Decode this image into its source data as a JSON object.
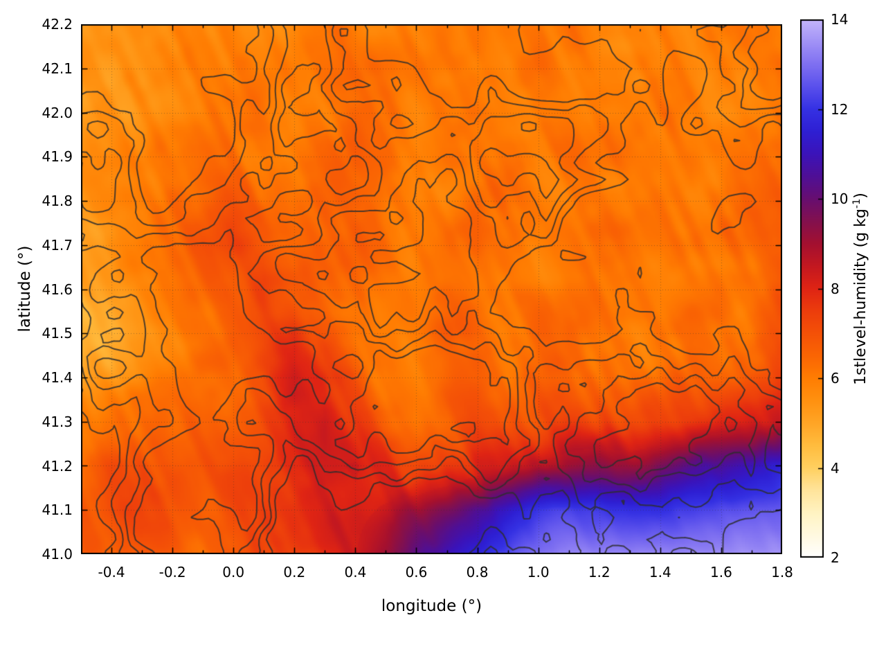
{
  "page": {
    "background": "#ffffff"
  },
  "labels": {
    "xlabel": "longitude (°)",
    "ylabel": "latitude (°)",
    "cb_prefix": "1stlevel-humidity (g kg",
    "cb_sup": "-1",
    "cb_suffix": ")"
  },
  "chart_data": {
    "type": "heatmap",
    "title": "",
    "xlabel": "longitude (°)",
    "ylabel": "latitude (°)",
    "colorbar_label": "1stlevel-humidity (g kg⁻¹)",
    "xlim": [
      -0.5,
      1.8
    ],
    "ylim": [
      41.0,
      42.2
    ],
    "clim": [
      2,
      14
    ],
    "grid_on": true,
    "x_tick_values": [
      -0.4,
      -0.2,
      0.0,
      0.2,
      0.4,
      0.6,
      0.8,
      1.0,
      1.2,
      1.4,
      1.6,
      1.8
    ],
    "x_tick_labels": [
      "-0.4",
      "-0.2",
      "0.0",
      "0.2",
      "0.4",
      "0.6",
      "0.8",
      "1.0",
      "1.2",
      "1.4",
      "1.6",
      "1.8"
    ],
    "y_tick_values": [
      41.0,
      41.1,
      41.2,
      41.3,
      41.4,
      41.5,
      41.6,
      41.7,
      41.8,
      41.9,
      42.0,
      42.1,
      42.2
    ],
    "y_tick_labels": [
      "41.0",
      "41.1",
      "41.2",
      "41.3",
      "41.4",
      "41.5",
      "41.6",
      "41.7",
      "41.8",
      "41.9",
      "42.0",
      "42.1",
      "42.2"
    ],
    "cb_tick_values": [
      2,
      4,
      6,
      8,
      10,
      12,
      14
    ],
    "cb_tick_labels": [
      "2",
      "4",
      "6",
      "8",
      "10",
      "12",
      "14"
    ],
    "palette": [
      [
        2,
        "#ffffff"
      ],
      [
        3,
        "#fff3c2"
      ],
      [
        3.5,
        "#ffe49b"
      ],
      [
        4,
        "#ffd060"
      ],
      [
        4.5,
        "#ffbc3e"
      ],
      [
        5,
        "#ffa526"
      ],
      [
        5.5,
        "#ff9110"
      ],
      [
        6,
        "#ff7d02"
      ],
      [
        6.5,
        "#fa6503"
      ],
      [
        7,
        "#f45107"
      ],
      [
        7.5,
        "#ec3d0c"
      ],
      [
        8,
        "#df2414"
      ],
      [
        8.5,
        "#c31820"
      ],
      [
        9,
        "#a31030"
      ],
      [
        9.5,
        "#83104e"
      ],
      [
        10,
        "#670e70"
      ],
      [
        10.5,
        "#4f0f96"
      ],
      [
        11,
        "#3b13b9"
      ],
      [
        11.5,
        "#2e1fd3"
      ],
      [
        12,
        "#3531e3"
      ],
      [
        12.5,
        "#5a50ec"
      ],
      [
        13,
        "#7f70f1"
      ],
      [
        13.5,
        "#a192f6"
      ],
      [
        14,
        "#c4b5fa"
      ]
    ],
    "contour_overlay": {
      "present": true,
      "color": "#2e2e2e",
      "description": "unlabeled terrain-style isolines"
    },
    "field_grid": {
      "lon_start": -0.5,
      "lon_step": 0.1,
      "lat_start": 42.2,
      "lat_step": -0.1,
      "units": "g/kg",
      "values": [
        [
          5.4,
          5.5,
          5.6,
          5.8,
          6.0,
          6.0,
          5.9,
          5.8,
          6.0,
          6.1,
          6.0,
          6.0,
          6.1,
          6.0,
          5.9,
          5.9,
          6.0,
          6.0,
          5.9,
          5.8,
          5.9,
          6.0,
          6.0,
          6.0
        ],
        [
          5.2,
          5.3,
          5.5,
          5.8,
          6.0,
          6.1,
          6.0,
          5.9,
          6.0,
          6.2,
          6.3,
          6.1,
          6.0,
          6.0,
          5.9,
          6.0,
          6.1,
          6.0,
          5.9,
          5.9,
          6.0,
          6.1,
          6.0,
          6.0
        ],
        [
          5.3,
          5.4,
          5.6,
          5.9,
          6.1,
          6.2,
          6.2,
          6.0,
          6.1,
          6.4,
          6.4,
          6.1,
          6.0,
          6.1,
          6.0,
          6.1,
          6.2,
          6.0,
          5.9,
          6.0,
          6.1,
          6.0,
          5.9,
          6.1
        ],
        [
          5.5,
          5.7,
          5.9,
          6.1,
          6.3,
          6.5,
          6.3,
          6.1,
          6.3,
          6.5,
          6.3,
          6.1,
          6.1,
          6.2,
          6.2,
          6.1,
          6.1,
          6.2,
          6.1,
          6.0,
          6.2,
          6.1,
          6.1,
          6.3
        ],
        [
          5.5,
          5.8,
          6.1,
          6.4,
          6.6,
          6.9,
          6.6,
          6.3,
          6.5,
          6.4,
          6.1,
          6.1,
          6.2,
          6.5,
          6.2,
          6.1,
          6.1,
          6.2,
          6.2,
          6.1,
          6.1,
          6.2,
          6.1,
          6.6
        ],
        [
          5.3,
          5.6,
          6.0,
          6.4,
          6.8,
          7.3,
          6.9,
          6.4,
          6.6,
          6.4,
          6.2,
          6.1,
          6.2,
          6.5,
          6.2,
          6.1,
          6.2,
          6.5,
          6.2,
          6.1,
          6.1,
          6.2,
          6.3,
          7.0
        ],
        [
          4.9,
          5.1,
          5.5,
          6.0,
          6.5,
          7.0,
          7.5,
          6.9,
          6.5,
          6.2,
          6.1,
          6.1,
          6.2,
          6.3,
          6.1,
          6.1,
          6.4,
          6.3,
          6.1,
          6.1,
          6.2,
          6.4,
          6.3,
          6.9
        ],
        [
          4.7,
          4.9,
          5.2,
          5.7,
          6.2,
          6.8,
          7.4,
          7.8,
          7.0,
          6.4,
          6.0,
          6.1,
          6.5,
          6.3,
          6.1,
          6.2,
          6.5,
          6.2,
          6.1,
          6.2,
          6.5,
          6.3,
          6.5,
          7.0
        ],
        [
          5.1,
          5.3,
          5.6,
          6.0,
          6.4,
          6.8,
          7.3,
          8.3,
          8.1,
          6.9,
          6.2,
          6.0,
          6.3,
          6.6,
          6.2,
          6.4,
          6.7,
          6.5,
          6.2,
          6.5,
          6.8,
          6.5,
          6.8,
          7.2
        ],
        [
          6.0,
          6.2,
          6.4,
          6.4,
          6.7,
          7.0,
          7.3,
          7.8,
          8.5,
          7.6,
          6.8,
          6.3,
          6.6,
          7.0,
          6.8,
          7.0,
          7.4,
          7.2,
          7.0,
          7.2,
          7.5,
          7.8,
          8.0,
          8.4
        ],
        [
          6.5,
          6.8,
          7.0,
          6.8,
          6.9,
          7.2,
          7.4,
          7.8,
          8.3,
          8.6,
          7.9,
          7.4,
          7.6,
          7.9,
          8.2,
          8.6,
          9.0,
          9.4,
          9.2,
          9.6,
          10.2,
          10.6,
          11.0,
          11.6
        ],
        [
          6.8,
          7.0,
          7.2,
          7.0,
          6.8,
          7.1,
          7.4,
          7.7,
          8.0,
          8.3,
          8.6,
          9.0,
          9.6,
          10.4,
          11.2,
          12.0,
          12.2,
          12.1,
          12.0,
          12.1,
          12.2,
          12.3,
          12.5,
          12.7
        ],
        [
          6.6,
          6.8,
          7.0,
          6.8,
          6.6,
          6.9,
          7.2,
          7.6,
          8.0,
          8.5,
          9.2,
          10.2,
          11.0,
          11.6,
          12.4,
          13.0,
          13.2,
          13.3,
          13.3,
          13.4,
          13.4,
          13.4,
          13.5,
          13.5
        ]
      ]
    }
  }
}
